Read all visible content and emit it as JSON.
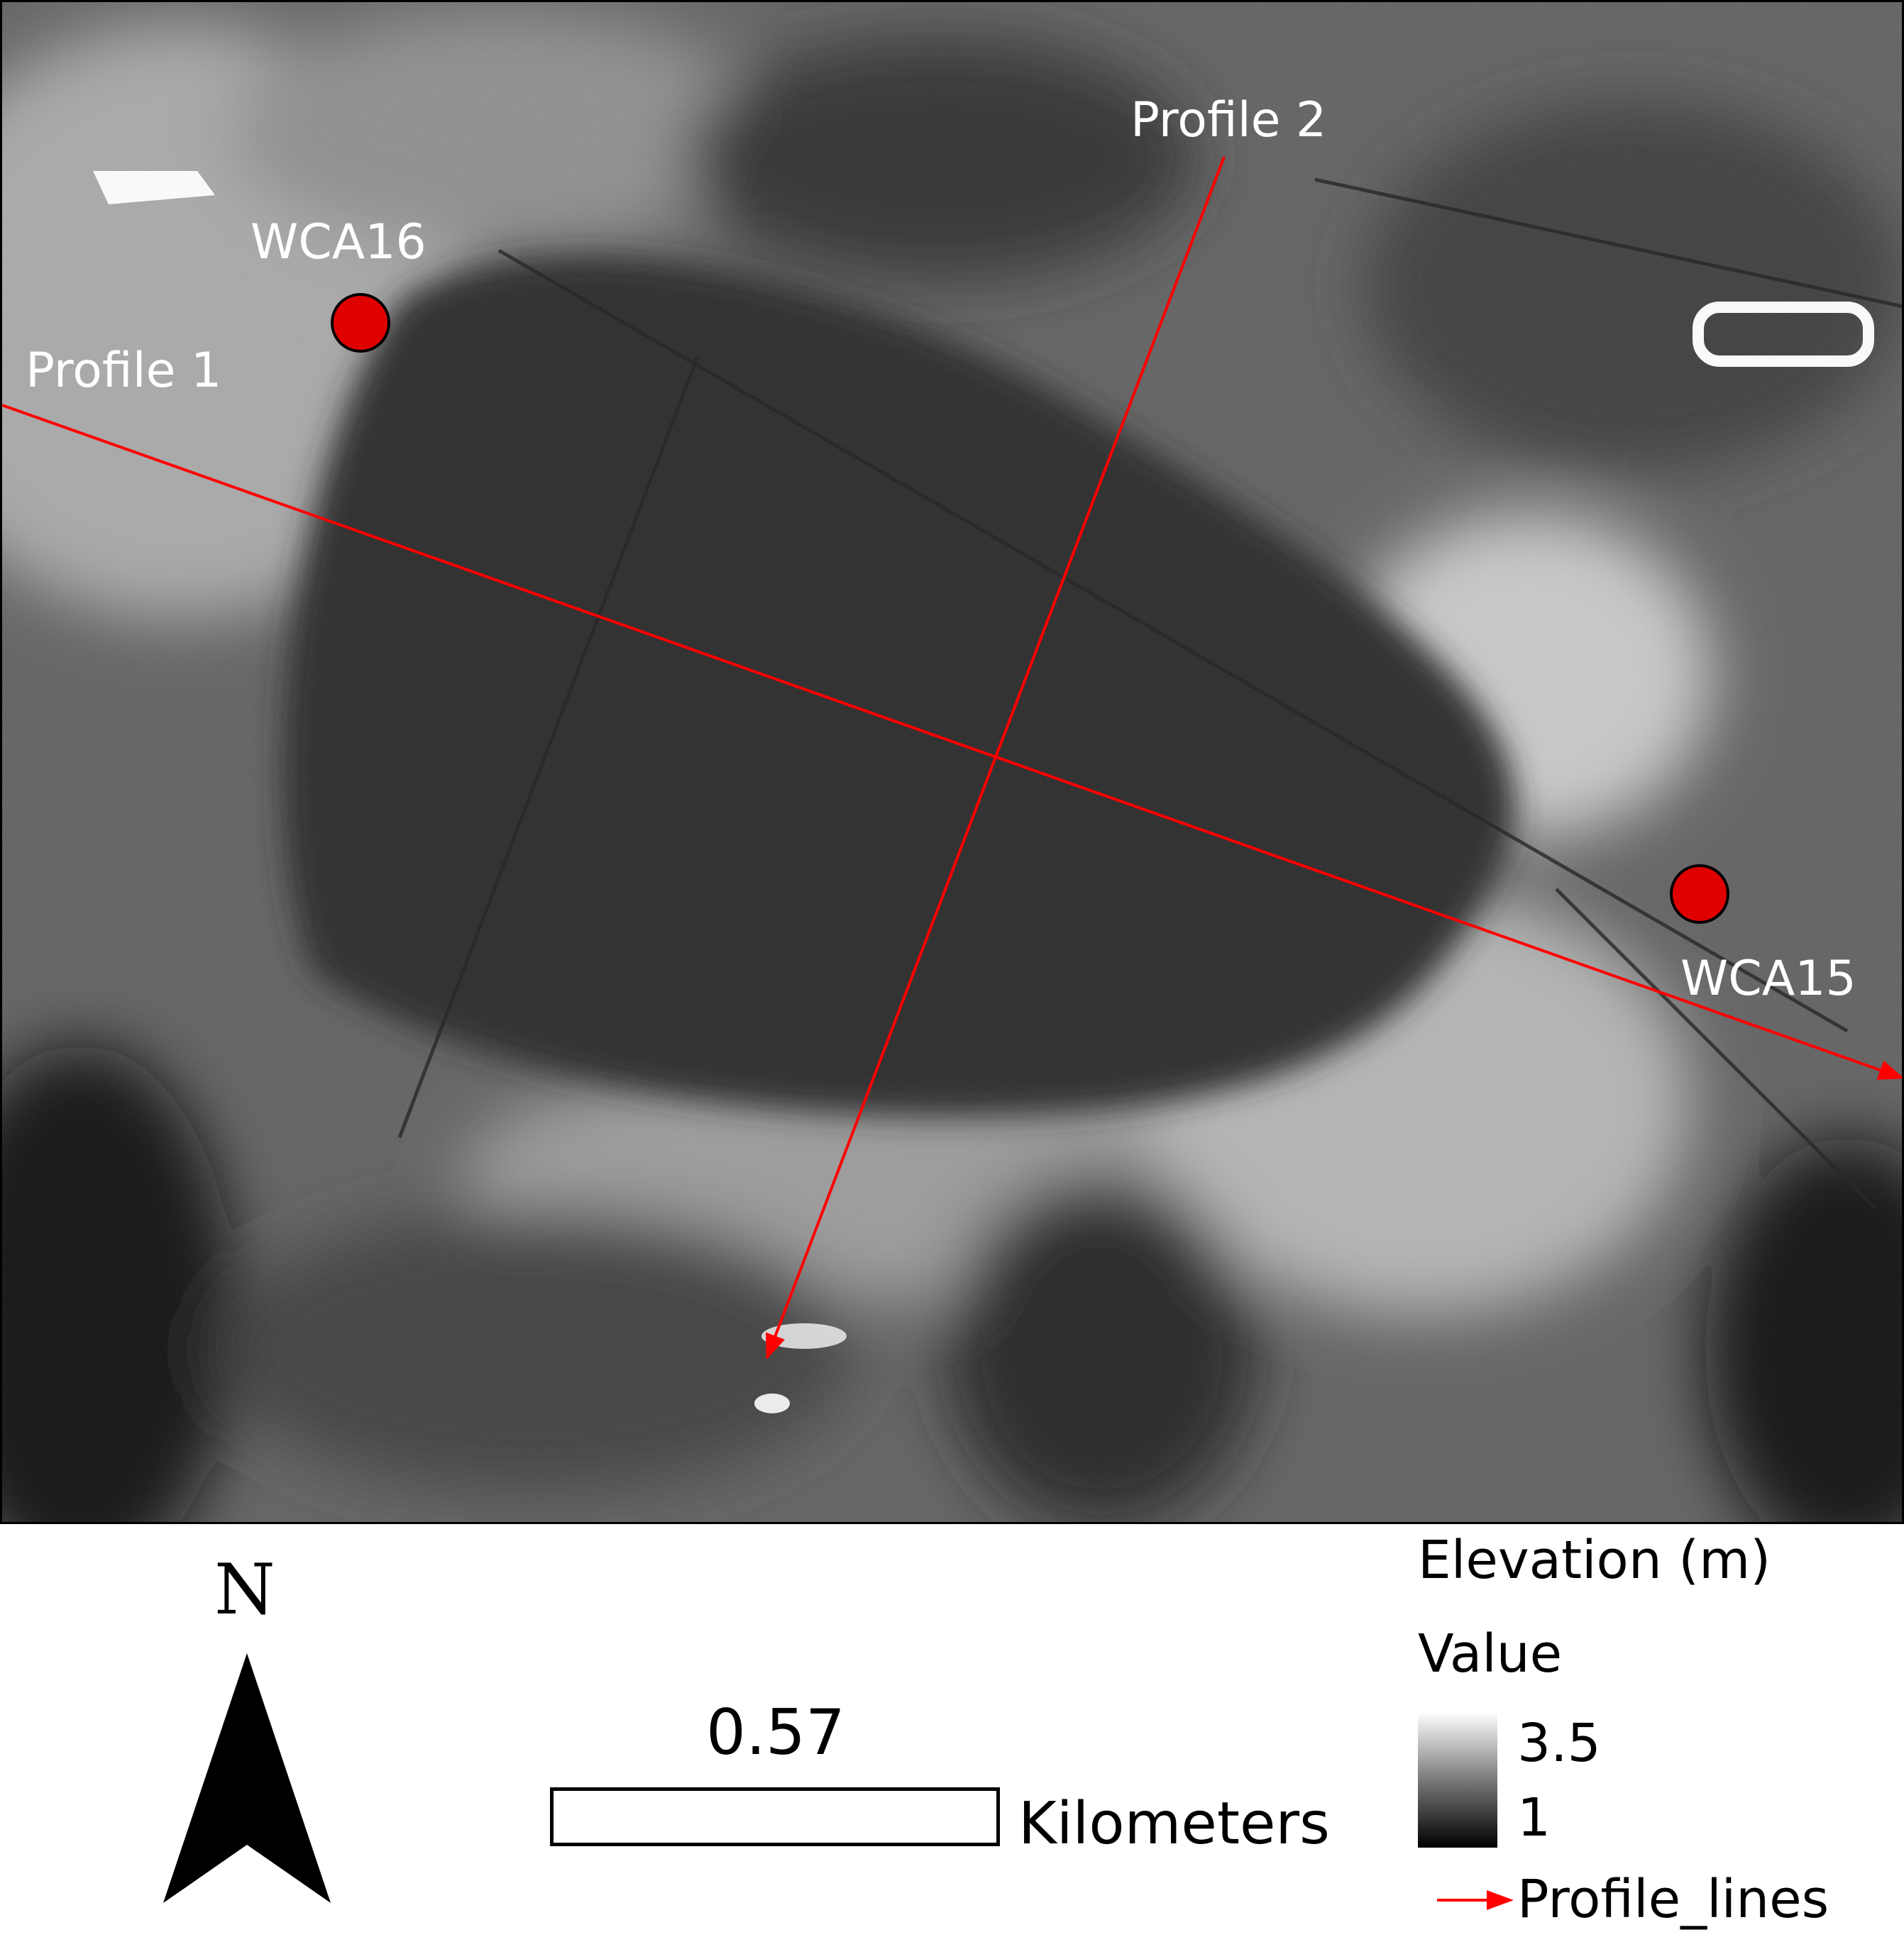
{
  "map": {
    "profile1_label": "Profile 1",
    "profile2_label": "Profile 2",
    "stations": [
      {
        "name": "WCA16",
        "color": "#e00000"
      },
      {
        "name": "WCA15",
        "color": "#e00000"
      }
    ],
    "profile_line_color": "#ff0000"
  },
  "north_arrow": {
    "letter": "N"
  },
  "scale_bar": {
    "value": "0.57",
    "unit": "Kilometers"
  },
  "legend": {
    "title": "Elevation (m)",
    "field": "Value",
    "ramp_high": "3.5",
    "ramp_low": "1",
    "ramp_colors": [
      "#ffffff",
      "#000000"
    ],
    "profile_lines_label": "Profile_lines",
    "profile_lines_color": "#ff0000"
  }
}
